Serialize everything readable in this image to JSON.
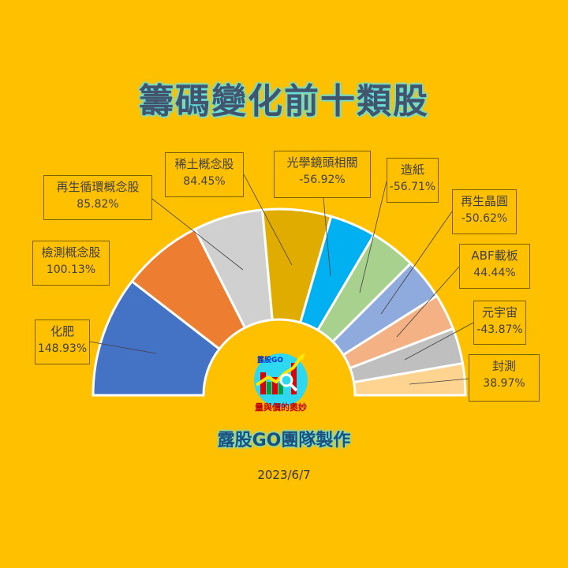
{
  "title": "籌碼變化前十類股",
  "credit": "露股GO團隊製作",
  "date": "2023/6/7",
  "logo": {
    "brand": "露股GO",
    "tagline": "量與價的奧妙",
    "circle_color": "#2ED8F0"
  },
  "colors": {
    "background": "#FFC000",
    "title_text": "#44546A",
    "title_glow": "#5FE3E8"
  },
  "chart_data": {
    "type": "pie",
    "subtype": "half-donut",
    "title": "籌碼變化前十類股",
    "categories": [
      "化肥",
      "檢測概念股",
      "再生循環概念股",
      "稀土概念股",
      "光學鏡頭相關",
      "造紙",
      "再生晶圓",
      "ABF載板",
      "元宇宙",
      "封測"
    ],
    "values": [
      148.93,
      100.13,
      85.82,
      84.45,
      -56.92,
      -56.71,
      -50.62,
      44.44,
      -43.87,
      38.97
    ],
    "labels": [
      "148.93%",
      "100.13%",
      "85.82%",
      "84.45%",
      "-56.92%",
      "-56.71%",
      "-50.62%",
      "44.44%",
      "-43.87%",
      "38.97%"
    ],
    "colors": [
      "#4472C4",
      "#ED7D31",
      "#D0D0D0",
      "#E0AC00",
      "#00B0F0",
      "#A9D18E",
      "#8FAADC",
      "#F4B183",
      "#BFBFBF",
      "#FFD390"
    ],
    "slice_size": "absolute value",
    "legend": "none (data labels with leader lines)"
  },
  "labels": [
    {
      "name": "化肥",
      "value": "148.93%"
    },
    {
      "name": "檢測概念股",
      "value": "100.13%"
    },
    {
      "name": "再生循環概念股",
      "value": "85.82%"
    },
    {
      "name": "稀土概念股",
      "value": "84.45%"
    },
    {
      "name": "光學鏡頭相關",
      "value": "-56.92%"
    },
    {
      "name": "造紙",
      "value": "-56.71%"
    },
    {
      "name": "再生晶圓",
      "value": "-50.62%"
    },
    {
      "name": "ABF載板",
      "value": "44.44%"
    },
    {
      "name": "元宇宙",
      "value": "-43.87%"
    },
    {
      "name": "封測",
      "value": "38.97%"
    }
  ]
}
